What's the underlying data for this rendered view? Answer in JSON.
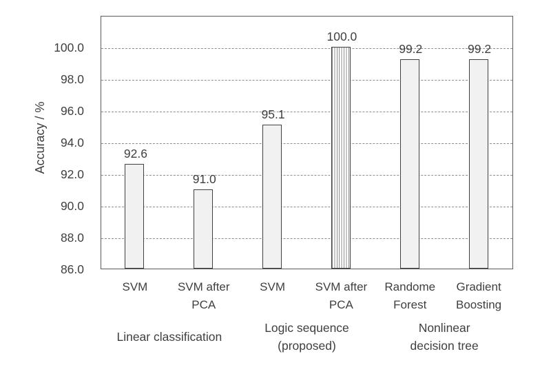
{
  "chart_data": {
    "type": "bar",
    "title": "",
    "xlabel": "",
    "ylabel": "Accuracy / %",
    "ylim": [
      86,
      102
    ],
    "yticks": [
      86,
      88,
      90,
      92,
      94,
      96,
      98,
      100
    ],
    "grid": "horizontal-dashed",
    "legend": "none",
    "categories": [
      "SVM",
      "SVM after\nPCA",
      "SVM",
      "SVM after\nPCA",
      "Randome\nForest",
      "Gradient\nBoosting"
    ],
    "values": [
      92.6,
      91.0,
      95.1,
      100.0,
      99.2,
      99.2
    ],
    "value_labels": [
      "92.6",
      "91.0",
      "95.1",
      "100.0",
      "99.2",
      "99.2"
    ],
    "bar_styles": [
      "solid",
      "solid",
      "solid",
      "hatched-vertical",
      "solid",
      "solid"
    ],
    "groups": [
      {
        "label": "Linear classification",
        "from": 0,
        "to": 1
      },
      {
        "label": "Logic sequence\n(proposed)",
        "from": 2,
        "to": 3
      },
      {
        "label": "Nonlinear\ndecision tree",
        "from": 4,
        "to": 5
      }
    ],
    "colors": {
      "bar_fill": "#f1f1f1",
      "bar_border": "#3f3f3f",
      "hatch_line": "#8c8c8c",
      "hatch_background": "#ffffff",
      "grid_line": "#8c8c8c",
      "frame": "#595959",
      "text": "#3f3f3f",
      "background": "#ffffff"
    }
  }
}
